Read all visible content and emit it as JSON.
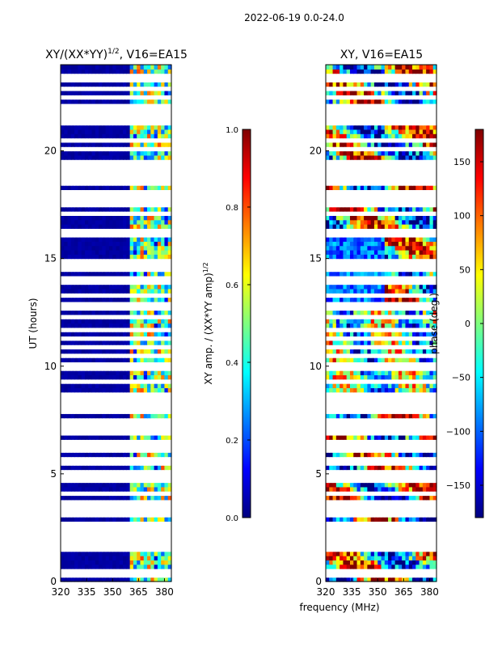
{
  "suptitle": "2022-06-19 0.0-24.0",
  "shared_xlabel": "frequency (MHz)",
  "colors": {
    "jet": [
      "#00007f",
      "#0000ff",
      "#007fff",
      "#00ffff",
      "#7fff7f",
      "#ffff00",
      "#ff7f00",
      "#ff0000",
      "#7f0000"
    ],
    "gap": "#ffffff",
    "axis": "#000000"
  },
  "chart_data": [
    {
      "type": "heatmap",
      "title_main": "XY/(XX*YY)",
      "title_sup": "1/2",
      "title_tail": ", V16=EA15",
      "xlabel": "",
      "ylabel": "UT (hours)",
      "xlim": [
        320,
        384
      ],
      "ylim": [
        0,
        24
      ],
      "xticks": [
        320,
        335,
        350,
        365,
        380
      ],
      "yticks": [
        0,
        5,
        10,
        15,
        20
      ],
      "colorbar": {
        "label": "XY amp. / (XX*YY amp)",
        "label_sup": "1/2",
        "range": [
          0.0,
          1.0
        ],
        "ticks": [
          "0.0",
          "0.2",
          "0.4",
          "0.6",
          "0.8",
          "1.0"
        ],
        "tick_values": [
          0.0,
          0.2,
          0.4,
          0.6,
          0.8,
          1.0
        ]
      },
      "description_values": {
        "background_value": 0.02,
        "band_low_MHz": 360,
        "band_high_MHz": 384,
        "band_peak_value": 0.6
      }
    },
    {
      "type": "heatmap",
      "title_main": "XY, V16=EA15",
      "title_sup": "",
      "title_tail": "",
      "xlabel": "frequency (MHz)",
      "ylabel": "",
      "xlim": [
        320,
        384
      ],
      "ylim": [
        0,
        24
      ],
      "xticks": [
        320,
        335,
        350,
        365,
        380
      ],
      "yticks": [
        0,
        5,
        10,
        15,
        20
      ],
      "colorbar": {
        "label": "phase (deg.)",
        "label_sup": "",
        "range": [
          -180,
          180
        ],
        "ticks": [
          "150",
          "100",
          "50",
          "0",
          "−50",
          "−100",
          "−150"
        ],
        "tick_values": [
          150,
          100,
          50,
          0,
          -50,
          -100,
          -150
        ]
      }
    }
  ],
  "gap_hours": [
    0.4,
    1.5,
    1.8,
    2.1,
    2.4,
    2.75,
    3.05,
    3.35,
    3.6,
    4.1,
    4.8,
    5.1,
    5.45,
    5.75,
    6.1,
    6.4,
    6.9,
    7.2,
    7.45,
    7.95,
    8.2,
    8.35,
    8.5,
    8.75,
    9.35,
    10.0,
    10.45,
    10.9,
    11.3,
    11.7,
    12.3,
    12.7,
    12.95,
    13.3,
    13.95,
    14.15,
    14.6,
    14.85,
    16.1,
    16.25,
    17.05,
    17.5,
    17.8,
    18.05,
    18.5,
    18.75,
    18.95,
    19.2,
    19.45,
    20.05,
    20.15,
    20.5,
    21.25,
    21.5,
    21.8,
    22.05,
    22.55,
    22.95,
    23.25,
    23.5
  ]
}
